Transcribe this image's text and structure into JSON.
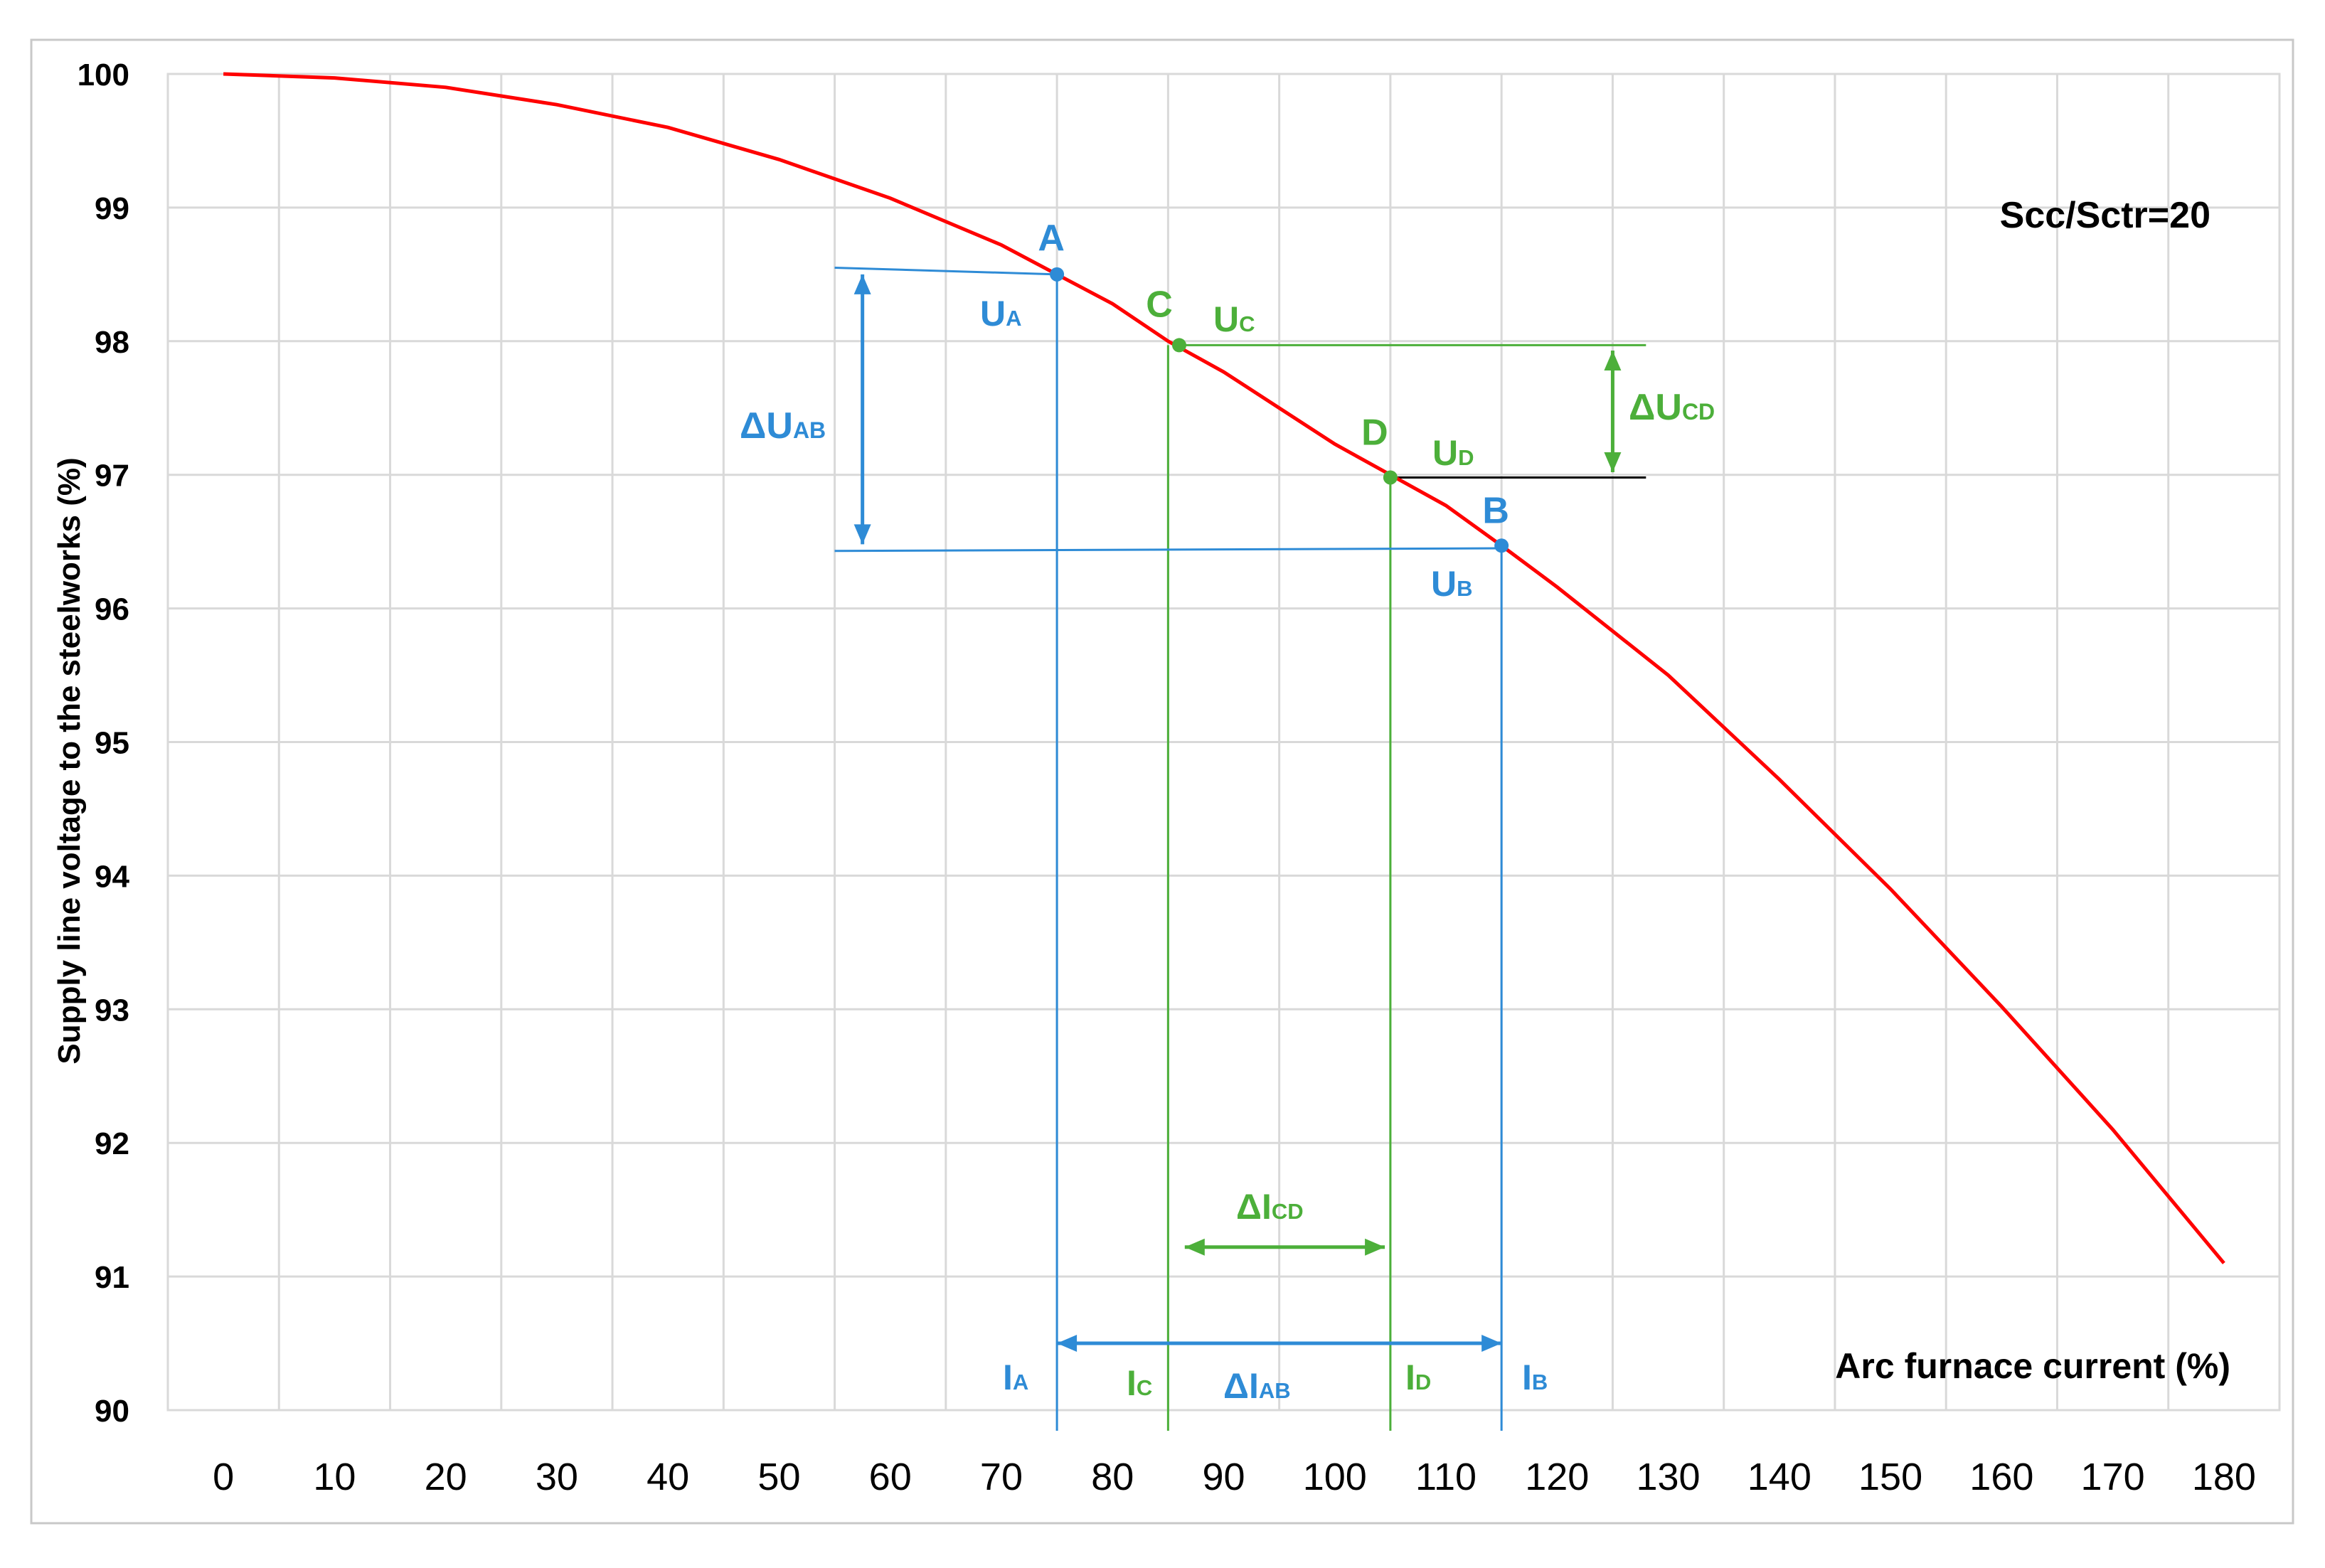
{
  "chart_data": {
    "type": "line",
    "title": "",
    "xlabel": "Arc furnace current  (%)",
    "ylabel": "Supply line voltage to the steelworks      (%)",
    "xlim": [
      -5,
      185
    ],
    "ylim": [
      90,
      100
    ],
    "x_ticks": [
      0,
      10,
      20,
      30,
      40,
      50,
      60,
      70,
      80,
      90,
      100,
      110,
      120,
      130,
      140,
      150,
      160,
      170,
      180
    ],
    "y_ticks": [
      90,
      91,
      92,
      93,
      94,
      95,
      96,
      97,
      98,
      99,
      100
    ],
    "grid": true,
    "annotation": "Scc/Sctr=20",
    "series": [
      {
        "color": "#ff0000",
        "x": [
          0,
          10,
          20,
          30,
          40,
          50,
          60,
          70,
          75,
          80,
          85,
          90,
          100,
          105,
          110,
          115,
          120,
          130,
          140,
          150,
          160,
          170,
          180
        ],
        "y": [
          100,
          99.97,
          99.9,
          99.77,
          99.6,
          99.36,
          99.07,
          98.72,
          98.5,
          98.28,
          98.0,
          97.77,
          97.23,
          97.0,
          96.77,
          96.47,
          96.16,
          95.5,
          94.72,
          93.9,
          93.02,
          92.1,
          91.1
        ]
      }
    ],
    "points": [
      {
        "label": "A",
        "x": 75,
        "y": 98.5,
        "color": "#2e8bd6"
      },
      {
        "label": "C",
        "x": 86,
        "y": 97.97,
        "color": "#4caf3a"
      },
      {
        "label": "D",
        "x": 105,
        "y": 96.98,
        "color": "#4caf3a"
      },
      {
        "label": "B",
        "x": 115,
        "y": 96.47,
        "color": "#2e8bd6"
      }
    ],
    "marker_labels": {
      "ua": "U",
      "ua_sub": "A",
      "ub": "U",
      "ub_sub": "B",
      "uc": "U",
      "uc_sub": "C",
      "ud": "U",
      "ud_sub": "D",
      "dua": "ΔU",
      "dua_sub": "AB",
      "ducd": "ΔU",
      "ducd_sub": "CD",
      "ia": "I",
      "ia_sub": "A",
      "ib": "I",
      "ib_sub": "B",
      "ic": "I",
      "ic_sub": "C",
      "id": "I",
      "id_sub": "D",
      "diab": "ΔI",
      "diab_sub": "AB",
      "dicd": "ΔI",
      "dicd_sub": "CD"
    },
    "colors": {
      "curve": "#ff0000",
      "blue": "#2e8bd6",
      "green": "#4caf3a",
      "grid": "#d9d9d9",
      "black_line": "#000000"
    }
  }
}
